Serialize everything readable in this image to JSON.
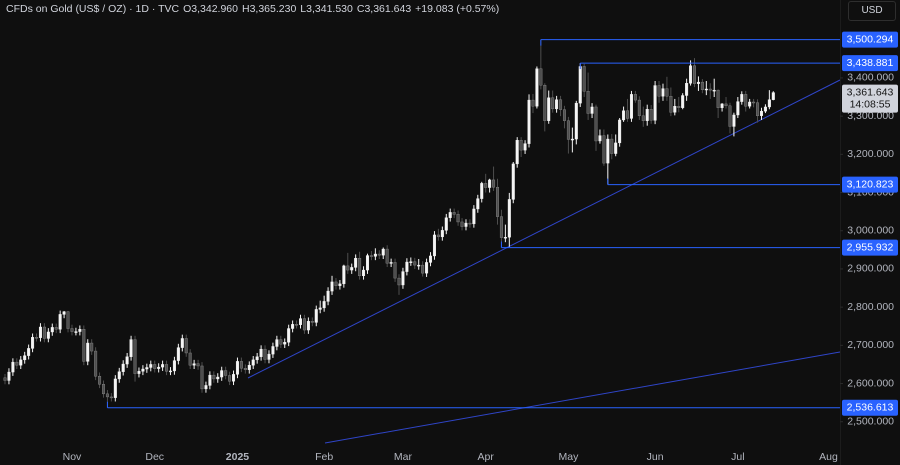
{
  "chart_data": {
    "type": "candlestick",
    "title": "CFDs on Gold (US$ / OZ) · 1D · TVC",
    "legend": [
      {
        "key": "O",
        "value": "3,342.960"
      },
      {
        "key": "H",
        "value": "3,365.230"
      },
      {
        "key": "L",
        "value": "3,341.530"
      },
      {
        "key": "C",
        "value": "3,361.643"
      }
    ],
    "change": "+19.083 (+0.57%)",
    "currency": "USD",
    "up_color": "#f5f5f5",
    "down_color": "#4e4e4e",
    "level_color": "#2962ff",
    "ylim": [
      2426,
      3604
    ],
    "yticks": [
      {
        "value": 2500,
        "label": "2,500.000"
      },
      {
        "value": 2600,
        "label": "2,600.000"
      },
      {
        "value": 2700,
        "label": "2,700.000"
      },
      {
        "value": 2800,
        "label": "2,800.000"
      },
      {
        "value": 2900,
        "label": "2,900.000"
      },
      {
        "value": 3000,
        "label": "3,000.000"
      },
      {
        "value": 3100,
        "label": "3,100.000"
      },
      {
        "value": 3200,
        "label": "3,200.000"
      },
      {
        "value": 3300,
        "label": "3,300.000"
      },
      {
        "value": 3400,
        "label": "3,400.000"
      }
    ],
    "levels": [
      {
        "value": 3500.294,
        "label": "3,500.294"
      },
      {
        "value": 3438.881,
        "label": "3,438.881"
      },
      {
        "value": 3120.823,
        "label": "3,120.823"
      },
      {
        "value": 2955.932,
        "label": "2,955.932"
      },
      {
        "value": 2536.613,
        "label": "2,536.613"
      }
    ],
    "last_price": {
      "value": 3361.643,
      "label": "3,361.643"
    },
    "countdown": "14:08:55",
    "categories": [
      null,
      null,
      null,
      null,
      null,
      null,
      null,
      null,
      null,
      null,
      null,
      null,
      null,
      null,
      null,
      null,
      null,
      "Nov",
      null,
      null,
      null,
      null,
      null,
      null,
      null,
      null,
      null,
      null,
      null,
      null,
      null,
      null,
      null,
      null,
      null,
      null,
      null,
      null,
      "Dec",
      null,
      null,
      null,
      null,
      null,
      null,
      null,
      null,
      null,
      null,
      null,
      null,
      null,
      null,
      null,
      null,
      null,
      null,
      null,
      null,
      "2025",
      null,
      null,
      null,
      null,
      null,
      null,
      null,
      null,
      null,
      null,
      null,
      null,
      null,
      null,
      null,
      null,
      null,
      null,
      null,
      null,
      null,
      "Feb",
      null,
      null,
      null,
      null,
      null,
      null,
      null,
      null,
      null,
      null,
      null,
      null,
      null,
      null,
      null,
      null,
      null,
      null,
      null,
      "Mar",
      null,
      null,
      null,
      null,
      null,
      null,
      null,
      null,
      null,
      null,
      null,
      null,
      null,
      null,
      null,
      null,
      null,
      null,
      null,
      null,
      "Apr",
      null,
      null,
      null,
      null,
      null,
      null,
      null,
      null,
      null,
      null,
      null,
      null,
      null,
      null,
      null,
      null,
      null,
      null,
      null,
      null,
      "May",
      null,
      null,
      null,
      null,
      null,
      null,
      null,
      null,
      null,
      null,
      null,
      null,
      null,
      null,
      null,
      null,
      null,
      null,
      null,
      null,
      null,
      "Jun",
      null,
      null,
      null,
      null,
      null,
      null,
      null,
      null,
      null,
      null,
      null,
      null,
      null,
      null,
      null,
      null,
      null,
      null,
      null,
      null,
      "Jul",
      null,
      null,
      null,
      null,
      null,
      null,
      null,
      null,
      null,
      null,
      null,
      null,
      null,
      null,
      null,
      null,
      null,
      null,
      null,
      null,
      null,
      null,
      "Aug"
    ],
    "open": [
      2615,
      2608,
      2630,
      2656,
      2648,
      2662,
      2673,
      2692,
      2721,
      2720,
      2748,
      2718,
      2735,
      2747,
      2742,
      2781,
      2788,
      2744,
      2736,
      2736,
      2742,
      2658,
      2706,
      2685,
      2619,
      2598,
      2573,
      2565,
      2563,
      2612,
      2631,
      2651,
      2670,
      2715,
      2626,
      2632,
      2638,
      2642,
      2650,
      2639,
      2643,
      2650,
      2632,
      2633,
      2660,
      2694,
      2718,
      2680,
      2648,
      2652,
      2646,
      2586,
      2595,
      2622,
      2612,
      2617,
      2634,
      2621,
      2606,
      2624,
      2658,
      2640,
      2636,
      2648,
      2662,
      2670,
      2690,
      2663,
      2677,
      2697,
      2715,
      2703,
      2708,
      2744,
      2755,
      2754,
      2770,
      2740,
      2763,
      2760,
      2794,
      2798,
      2815,
      2842,
      2866,
      2856,
      2861,
      2908,
      2897,
      2904,
      2928,
      2882,
      2897,
      2935,
      2933,
      2939,
      2936,
      2952,
      2915,
      2917,
      2876,
      2858,
      2893,
      2918,
      2919,
      2910,
      2910,
      2889,
      2917,
      2934,
      2989,
      2984,
      3001,
      3034,
      3048,
      3043,
      3023,
      3011,
      3020,
      3018,
      3057,
      3084,
      3124,
      3113,
      3133,
      3114,
      3037,
      2982,
      2983,
      3082,
      3175,
      3237,
      3211,
      3228,
      3342,
      3326,
      3424,
      3381,
      3288,
      3348,
      3319,
      3343,
      3317,
      3288,
      3239,
      3240,
      3334,
      3430,
      3365,
      3307,
      3324,
      3235,
      3249,
      3177,
      3240,
      3202,
      3230,
      3290,
      3314,
      3294,
      3357,
      3342,
      3301,
      3288,
      3318,
      3289,
      3380,
      3352,
      3372,
      3352,
      3310,
      3326,
      3322,
      3354,
      3386,
      3432,
      3385,
      3389,
      3369,
      3371,
      3368,
      3368,
      3322,
      3332,
      3327,
      3273,
      3303,
      3338,
      3357,
      3326,
      3337,
      3335,
      3301,
      3313,
      3324,
      3342.96,
      null,
      null,
      null,
      null,
      null,
      null,
      null,
      null,
      null,
      null,
      null,
      null,
      null,
      null
    ],
    "high": [
      2625,
      2640,
      2666,
      2666,
      2672,
      2683,
      2702,
      2731,
      2731,
      2758,
      2758,
      2745,
      2757,
      2757,
      2791,
      2790,
      2790,
      2754,
      2746,
      2752,
      2752,
      2716,
      2716,
      2695,
      2629,
      2608,
      2583,
      2575,
      2622,
      2641,
      2661,
      2680,
      2725,
      2725,
      2642,
      2648,
      2652,
      2660,
      2660,
      2653,
      2660,
      2660,
      2643,
      2670,
      2704,
      2728,
      2728,
      2690,
      2662,
      2662,
      2656,
      2605,
      2632,
      2632,
      2627,
      2644,
      2644,
      2631,
      2634,
      2668,
      2668,
      2650,
      2658,
      2672,
      2680,
      2700,
      2700,
      2687,
      2707,
      2725,
      2725,
      2718,
      2754,
      2765,
      2765,
      2780,
      2780,
      2773,
      2773,
      2804,
      2817,
      2830,
      2852,
      2882,
      2876,
      2871,
      2911,
      2942,
      2914,
      2938,
      2945,
      2907,
      2940,
      2947,
      2954,
      2949,
      2956,
      2962,
      2927,
      2927,
      2886,
      2903,
      2928,
      2930,
      2929,
      2926,
      2920,
      2927,
      2944,
      2999,
      3005,
      3011,
      3044,
      3058,
      3058,
      3053,
      3033,
      3030,
      3030,
      3067,
      3094,
      3128,
      3149,
      3136,
      3168,
      3136,
      3055,
      3016,
      3099,
      3180,
      3245,
      3245,
      3237,
      3357,
      3358,
      3430,
      3500.294,
      3386,
      3367,
      3367,
      3353,
      3353,
      3327,
      3298,
      3270,
      3340,
      3438.881,
      3437,
      3414,
      3334,
      3330,
      3265,
      3265,
      3252,
      3253,
      3252,
      3295,
      3325,
      3345,
      3366,
      3366,
      3352,
      3325,
      3330,
      3329,
      3392,
      3392,
      3385,
      3403,
      3375,
      3345,
      3350,
      3360,
      3398,
      3446,
      3452,
      3404,
      3397,
      3392,
      3386,
      3398,
      3370,
      3334,
      3350,
      3335,
      3309,
      3350,
      3365,
      3366,
      3345,
      3345,
      3344,
      3322,
      3331,
      3368,
      3365.23,
      null,
      null,
      null,
      null,
      null,
      null,
      null,
      null,
      null,
      null,
      null,
      null,
      null,
      null
    ],
    "low": [
      2598,
      2598,
      2620,
      2638,
      2638,
      2652,
      2663,
      2682,
      2710,
      2710,
      2708,
      2708,
      2725,
      2732,
      2732,
      2771,
      2734,
      2726,
      2726,
      2726,
      2648,
      2648,
      2675,
      2609,
      2588,
      2563,
      2536.613,
      2553,
      2553,
      2602,
      2621,
      2641,
      2660,
      2605,
      2616,
      2622,
      2628,
      2632,
      2629,
      2629,
      2633,
      2622,
      2622,
      2623,
      2650,
      2684,
      2670,
      2638,
      2638,
      2636,
      2576,
      2576,
      2585,
      2602,
      2602,
      2607,
      2611,
      2596,
      2596,
      2614,
      2630,
      2626,
      2626,
      2638,
      2652,
      2660,
      2653,
      2653,
      2667,
      2687,
      2693,
      2693,
      2698,
      2734,
      2744,
      2744,
      2730,
      2730,
      2750,
      2750,
      2784,
      2788,
      2805,
      2832,
      2846,
      2846,
      2851,
      2887,
      2887,
      2894,
      2872,
      2872,
      2887,
      2923,
      2923,
      2926,
      2926,
      2905,
      2905,
      2866,
      2832,
      2848,
      2883,
      2908,
      2900,
      2898,
      2880,
      2879,
      2907,
      2924,
      2974,
      2974,
      2991,
      3024,
      3033,
      3013,
      3001,
      3001,
      3008,
      3008,
      3047,
      3074,
      3100,
      3100,
      3104,
      3016,
      2955.932,
      2970,
      2958,
      3072,
      3165,
      3193,
      3201,
      3218,
      3308,
      3320,
      3370,
      3260,
      3280,
      3309,
      3309,
      3300,
      3268,
      3202,
      3205,
      3226,
      3324,
      3350,
      3290,
      3295,
      3209,
      3228,
      3170,
      3120.823,
      3187,
      3195,
      3220,
      3285,
      3285,
      3285,
      3335,
      3290,
      3272,
      3275,
      3280,
      3279,
      3335,
      3340,
      3340,
      3300,
      3302,
      3310,
      3318,
      3340,
      3380,
      3376,
      3366,
      3360,
      3355,
      3345,
      3350,
      3295,
      3312,
      3320,
      3255,
      3247,
      3295,
      3330,
      3312,
      3320,
      3323,
      3283,
      3290,
      3308,
      3318,
      3341.53,
      null,
      null,
      null,
      null,
      null,
      null,
      null,
      null,
      null,
      null,
      null,
      null,
      null,
      null
    ],
    "close": [
      2608,
      2630,
      2656,
      2648,
      2662,
      2673,
      2692,
      2721,
      2720,
      2748,
      2718,
      2735,
      2747,
      2742,
      2781,
      2788,
      2744,
      2736,
      2736,
      2742,
      2658,
      2706,
      2685,
      2619,
      2598,
      2573,
      2565,
      2563,
      2612,
      2631,
      2651,
      2670,
      2715,
      2626,
      2632,
      2638,
      2642,
      2650,
      2639,
      2643,
      2650,
      2632,
      2633,
      2660,
      2694,
      2718,
      2680,
      2648,
      2652,
      2646,
      2586,
      2595,
      2622,
      2612,
      2617,
      2634,
      2621,
      2606,
      2624,
      2658,
      2640,
      2636,
      2648,
      2662,
      2670,
      2690,
      2663,
      2677,
      2697,
      2715,
      2703,
      2708,
      2744,
      2755,
      2754,
      2770,
      2740,
      2763,
      2760,
      2794,
      2798,
      2815,
      2842,
      2866,
      2856,
      2861,
      2908,
      2897,
      2904,
      2928,
      2882,
      2897,
      2935,
      2933,
      2939,
      2936,
      2952,
      2915,
      2917,
      2876,
      2858,
      2893,
      2918,
      2919,
      2910,
      2910,
      2889,
      2917,
      2934,
      2989,
      2984,
      3001,
      3034,
      3048,
      3043,
      3023,
      3011,
      3020,
      3018,
      3057,
      3084,
      3124,
      3113,
      3133,
      3114,
      3037,
      2982,
      2983,
      3082,
      3175,
      3237,
      3211,
      3228,
      3342,
      3326,
      3424,
      3381,
      3288,
      3348,
      3319,
      3343,
      3317,
      3288,
      3239,
      3240,
      3334,
      3430,
      3365,
      3307,
      3324,
      3235,
      3249,
      3177,
      3240,
      3202,
      3230,
      3290,
      3314,
      3294,
      3357,
      3342,
      3301,
      3288,
      3318,
      3289,
      3380,
      3352,
      3372,
      3352,
      3310,
      3326,
      3322,
      3354,
      3386,
      3432,
      3385,
      3389,
      3369,
      3371,
      3368,
      3368,
      3322,
      3332,
      3327,
      3273,
      3303,
      3338,
      3357,
      3326,
      3337,
      3335,
      3301,
      3313,
      3324,
      3343,
      3361.643,
      null,
      null,
      null,
      null,
      null,
      null,
      null,
      null,
      null,
      null,
      null,
      null,
      null,
      null
    ]
  }
}
